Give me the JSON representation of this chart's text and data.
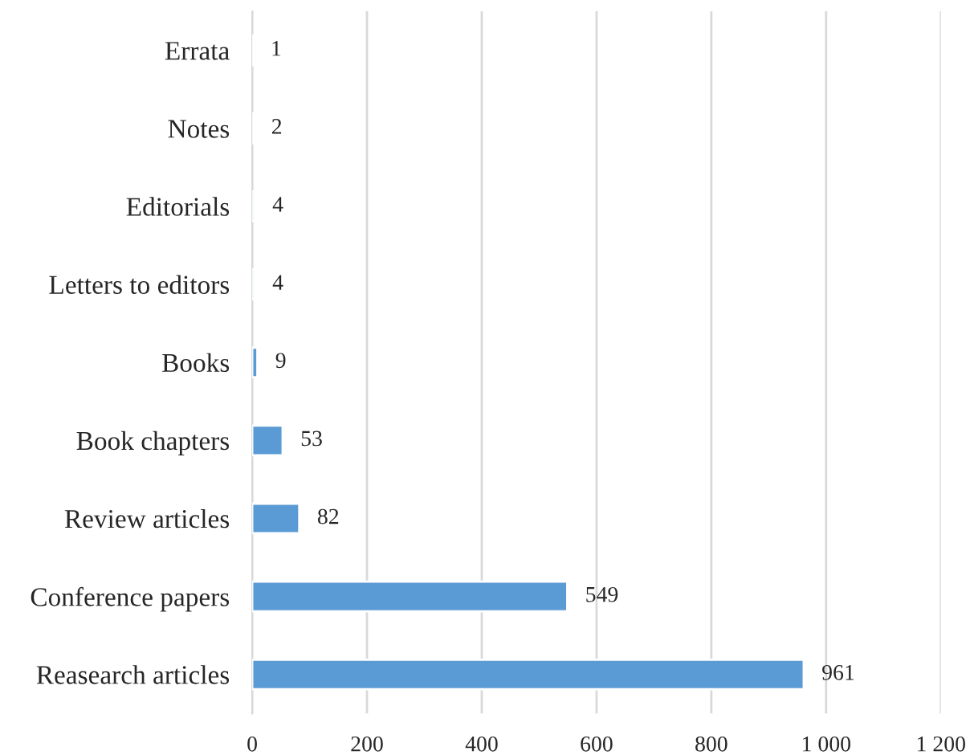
{
  "chart_data": {
    "type": "bar",
    "orientation": "horizontal",
    "categories": [
      "Errata",
      "Notes",
      "Editorials",
      "Letters to editors",
      "Books",
      "Book chapters",
      "Review articles",
      "Conference papers",
      "Reasearch articles"
    ],
    "values": [
      1,
      2,
      4,
      4,
      9,
      53,
      82,
      549,
      961
    ],
    "color": "#5b9bd5",
    "xlim": [
      0,
      1200
    ],
    "xticks": [
      0,
      200,
      400,
      600,
      800,
      {
        "value": 1000,
        "label": "1 000"
      },
      {
        "value": 1200,
        "label": "1 200"
      }
    ],
    "grid": "x",
    "data_labels": true
  }
}
